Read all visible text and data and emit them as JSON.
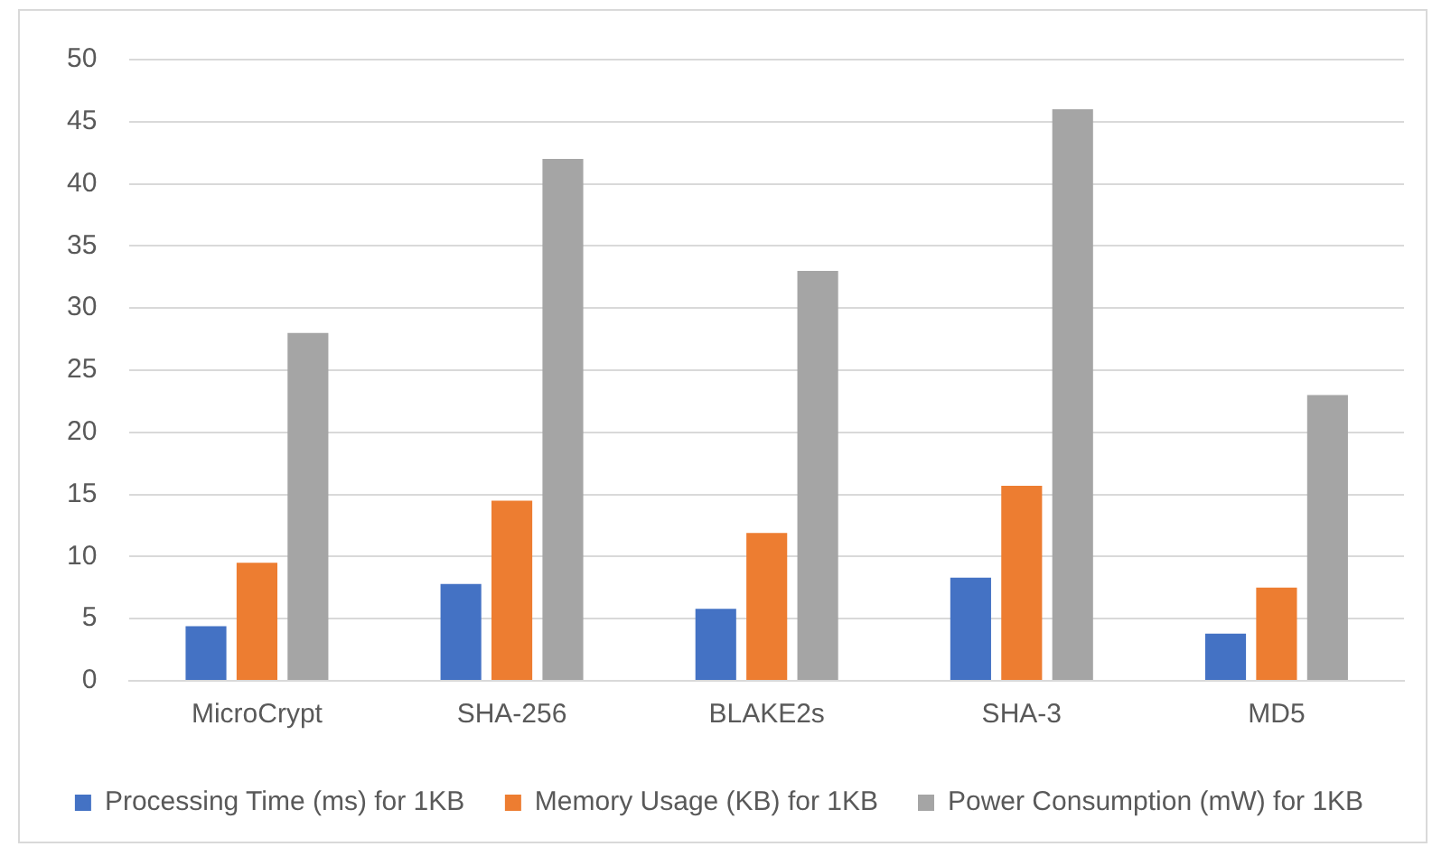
{
  "chart_data": {
    "type": "bar",
    "categories": [
      "MicroCrypt",
      "SHA-256",
      "BLAKE2s",
      "SHA-3",
      "MD5"
    ],
    "series": [
      {
        "name": "Processing Time (ms) for 1KB",
        "color": "#4472c4",
        "values": [
          4.4,
          7.8,
          5.8,
          8.3,
          3.8
        ]
      },
      {
        "name": "Memory Usage (KB) for 1KB",
        "color": "#ed7d31",
        "values": [
          9.5,
          14.5,
          11.9,
          15.7,
          7.5
        ]
      },
      {
        "name": "Power Consumption (mW) for 1KB",
        "color": "#a5a5a5",
        "values": [
          28,
          42,
          33,
          46,
          23
        ]
      }
    ],
    "ylim": [
      0,
      50
    ],
    "yticks": [
      0,
      5,
      10,
      15,
      20,
      25,
      30,
      35,
      40,
      45,
      50
    ],
    "grid": "y",
    "legend": "bottom"
  }
}
